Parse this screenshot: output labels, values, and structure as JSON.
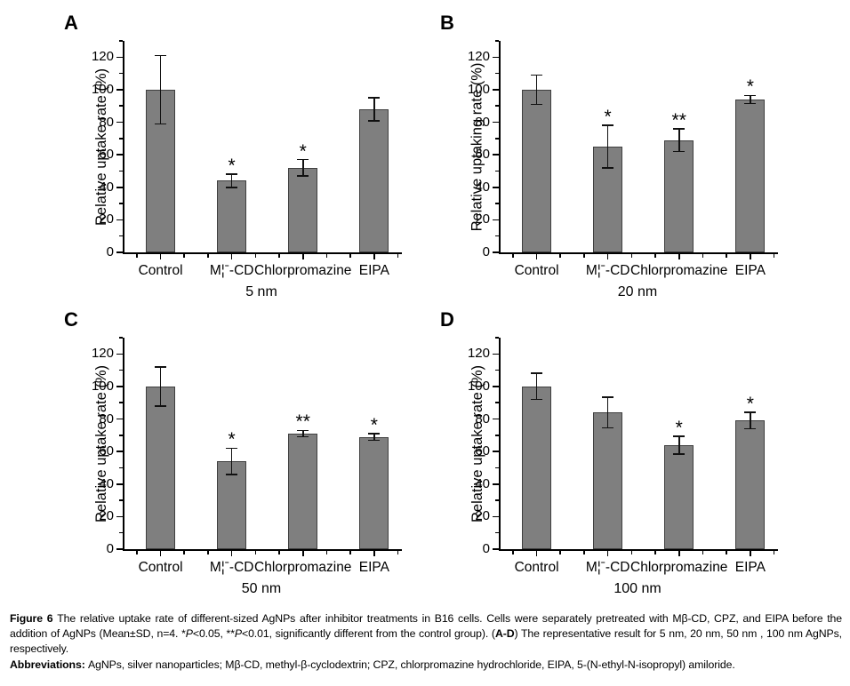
{
  "colors": {
    "background": "#ffffff",
    "bar_fill": "#7f7f7f",
    "bar_stroke": "#3f3f3f",
    "axis": "#000000"
  },
  "chart_data": [
    {
      "type": "bar",
      "panel": "A",
      "ylabel": "Relative uptake rate (%)",
      "xlabel": "5 nm",
      "categories": [
        "Control",
        "M¦ˉ-CD",
        "Chlorpromazine",
        "EIPA"
      ],
      "values": [
        100,
        44,
        52,
        88
      ],
      "errors": [
        21,
        4,
        5,
        7
      ],
      "annotations": [
        "",
        "*",
        "*",
        ""
      ],
      "ylim": [
        0,
        130
      ],
      "yticks": [
        0,
        20,
        40,
        60,
        80,
        100,
        120
      ],
      "grid": false,
      "legend": null
    },
    {
      "type": "bar",
      "panel": "B",
      "ylabel": "Relative uptaking rate (%)",
      "xlabel": "20 nm",
      "categories": [
        "Control",
        "M¦ˉ-CD",
        "Chlorpromazine",
        "EIPA"
      ],
      "values": [
        100,
        65,
        69,
        94
      ],
      "errors": [
        9,
        13,
        7,
        2.5
      ],
      "annotations": [
        "",
        "*",
        "**",
        "*"
      ],
      "ylim": [
        0,
        130
      ],
      "yticks": [
        0,
        20,
        40,
        60,
        80,
        100,
        120
      ],
      "grid": false,
      "legend": null
    },
    {
      "type": "bar",
      "panel": "C",
      "ylabel": "Relative uptake rate (%)",
      "xlabel": "50 nm",
      "categories": [
        "Control",
        "M¦ˉ-CD",
        "Chlorpromazine",
        "EIPA"
      ],
      "values": [
        100,
        54,
        71,
        69
      ],
      "errors": [
        12,
        8,
        2,
        2
      ],
      "annotations": [
        "",
        "*",
        "**",
        "*"
      ],
      "ylim": [
        0,
        130
      ],
      "yticks": [
        0,
        20,
        40,
        60,
        80,
        100,
        120
      ],
      "grid": false,
      "legend": null
    },
    {
      "type": "bar",
      "panel": "D",
      "ylabel": "Relative uptake rate (%)",
      "xlabel": "100 nm",
      "categories": [
        "Control",
        "M¦ˉ-CD",
        "Chlorpromazine",
        "EIPA"
      ],
      "values": [
        100,
        84,
        64,
        79
      ],
      "errors": [
        8,
        9.5,
        5.5,
        5
      ],
      "annotations": [
        "",
        "",
        "*",
        "*"
      ],
      "ylim": [
        0,
        130
      ],
      "yticks": [
        0,
        20,
        40,
        60,
        80,
        100,
        120
      ],
      "grid": false,
      "legend": null
    }
  ],
  "caption": {
    "segments": [
      {
        "text": "Figure 6 ",
        "bold": true
      },
      {
        "text": "The relative uptake rate of different-sized AgNPs after inhibitor treatments in B16 cells. Cells were separately pretreated with Mβ-CD, CPZ, and EIPA before the addition of AgNPs (Mean±SD, n=4. *",
        "bold": false
      },
      {
        "text": "P",
        "bold": false,
        "italic": true
      },
      {
        "text": "<0.05, **",
        "bold": false
      },
      {
        "text": "P",
        "bold": false,
        "italic": true
      },
      {
        "text": "<0.01, significantly different from the control group). (",
        "bold": false
      },
      {
        "text": "A-D",
        "bold": true
      },
      {
        "text": ") The representative result for 5 nm, 20 nm, 50 nm , 100 nm AgNPs, respectively.",
        "bold": false
      }
    ],
    "abbreviations": [
      {
        "text": "Abbreviations: ",
        "bold": true
      },
      {
        "text": "AgNPs, silver nanoparticles; Mβ-CD, methyl-β-cyclodextrin; CPZ, chlorpromazine hydrochloride, EIPA, 5-(N-ethyl-N-isopropyl) amiloride.",
        "bold": false
      }
    ]
  }
}
